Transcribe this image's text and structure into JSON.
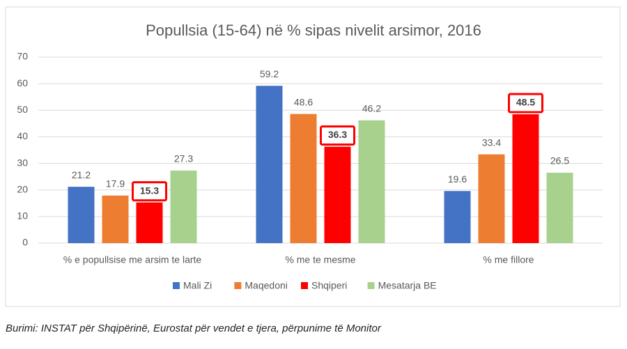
{
  "chart_data": {
    "type": "bar",
    "title": "Popullsia (15-64) në % sipas nivelit arsimor, 2016",
    "categories": [
      "% e popullsise me arsim te larte",
      "% me te mesme",
      "% me fillore"
    ],
    "series": [
      {
        "name": "Mali Zi",
        "color": "#4472c4",
        "values": [
          21.2,
          59.2,
          19.6
        ]
      },
      {
        "name": "Maqedoni",
        "color": "#ed7d31",
        "values": [
          17.9,
          48.6,
          33.4
        ]
      },
      {
        "name": "Shqiperi",
        "color": "#ff0000",
        "values": [
          15.3,
          36.3,
          48.5
        ],
        "highlight": true
      },
      {
        "name": "Mesatarja BE",
        "color": "#a9d18e",
        "values": [
          27.3,
          46.2,
          26.5
        ]
      }
    ],
    "ylim": [
      0,
      70
    ],
    "yticks": [
      0,
      10,
      20,
      30,
      40,
      50,
      60,
      70
    ],
    "grid": true,
    "legend": "bottom",
    "source": "Burimi: INSTAT për Shqipërinë, Eurostat për vendet e tjera, përpunime të Monitor"
  }
}
